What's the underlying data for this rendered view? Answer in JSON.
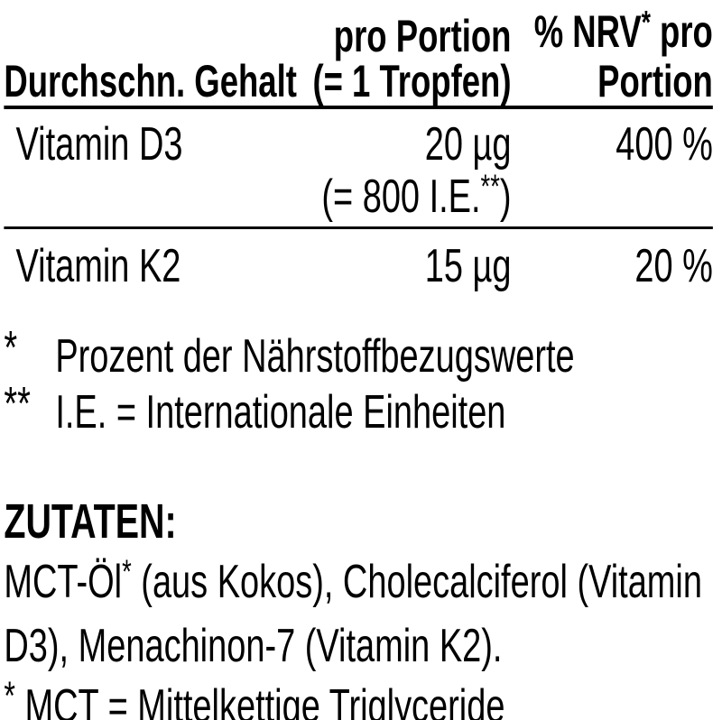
{
  "colors": {
    "text": "#000000",
    "background": "#ffffff"
  },
  "table": {
    "header": {
      "col1": "Durchschn. Gehalt",
      "col2_line1": "pro Portion",
      "col2_line2": "(= 1 Tropfen)",
      "col3_line1_pre": "% NRV",
      "col3_line1_sup": "*",
      "col3_line1_post": " pro",
      "col3_line2": "Portion"
    },
    "rows": [
      {
        "name": "Vitamin D3",
        "amount": "20 µg",
        "amount_note_pre": "(= 800 I.E.",
        "amount_note_sup": "**",
        "amount_note_post": ")",
        "nrv": "400 %"
      },
      {
        "name": "Vitamin K2",
        "amount": "15 µg",
        "nrv": "20 %"
      }
    ]
  },
  "footnotes": [
    {
      "marker": "*",
      "text": "Prozent der Nährstoffbezugswerte"
    },
    {
      "marker": "**",
      "text": "I.E. = Internationale Einheiten"
    }
  ],
  "ingredients": {
    "heading": "ZUTATEN:",
    "line1_pre": "MCT-Öl",
    "line1_sup": "*",
    "line1_post": " (aus Kokos), Cholecalciferol (Vitamin",
    "line2": "D3), Menachinon-7 (Vitamin K2).",
    "footnote_marker": "*",
    "footnote_text": " MCT = Mittelkettige Triglyceride"
  }
}
